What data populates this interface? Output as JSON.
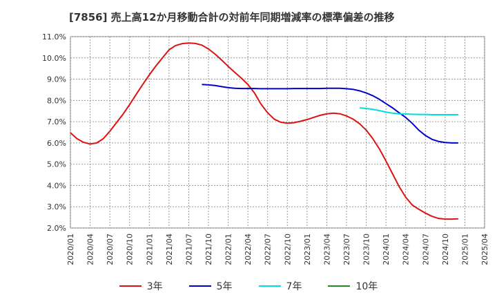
{
  "chart_data": {
    "type": "line",
    "title": "[7856]  売上高12か月移動合計の対前年同期増減率の標準偏差の推移",
    "xlabel": "",
    "ylabel": "",
    "ylim": [
      2.0,
      11.0
    ],
    "yticks": [
      "2.0%",
      "3.0%",
      "4.0%",
      "5.0%",
      "6.0%",
      "7.0%",
      "8.0%",
      "9.0%",
      "10.0%",
      "11.0%"
    ],
    "xtick_labels": [
      "2020/01",
      "2020/04",
      "2020/07",
      "2020/10",
      "2021/01",
      "2021/04",
      "2021/07",
      "2021/10",
      "2022/01",
      "2022/04",
      "2022/07",
      "2022/10",
      "2023/01",
      "2023/04",
      "2023/07",
      "2023/10",
      "2024/01",
      "2024/04",
      "2024/07",
      "2024/10",
      "2025/01",
      "2025/04"
    ],
    "grid": true,
    "legend_position": "bottom",
    "series": [
      {
        "name": "3年",
        "color": "#dd1111",
        "points": [
          [
            "2020/01",
            6.48
          ],
          [
            "2020/02",
            6.2
          ],
          [
            "2020/03",
            6.03
          ],
          [
            "2020/04",
            5.95
          ],
          [
            "2020/05",
            6.0
          ],
          [
            "2020/06",
            6.2
          ],
          [
            "2020/07",
            6.55
          ],
          [
            "2020/08",
            6.95
          ],
          [
            "2020/09",
            7.35
          ],
          [
            "2020/10",
            7.8
          ],
          [
            "2020/11",
            8.28
          ],
          [
            "2020/12",
            8.75
          ],
          [
            "2021/01",
            9.2
          ],
          [
            "2021/02",
            9.62
          ],
          [
            "2021/03",
            10.0
          ],
          [
            "2021/04",
            10.38
          ],
          [
            "2021/05",
            10.58
          ],
          [
            "2021/06",
            10.67
          ],
          [
            "2021/07",
            10.7
          ],
          [
            "2021/08",
            10.68
          ],
          [
            "2021/09",
            10.6
          ],
          [
            "2021/10",
            10.42
          ],
          [
            "2021/11",
            10.18
          ],
          [
            "2021/12",
            9.9
          ],
          [
            "2022/01",
            9.6
          ],
          [
            "2022/02",
            9.32
          ],
          [
            "2022/03",
            9.05
          ],
          [
            "2022/04",
            8.75
          ],
          [
            "2022/05",
            8.35
          ],
          [
            "2022/06",
            7.82
          ],
          [
            "2022/07",
            7.42
          ],
          [
            "2022/08",
            7.12
          ],
          [
            "2022/09",
            6.97
          ],
          [
            "2022/10",
            6.93
          ],
          [
            "2022/11",
            6.95
          ],
          [
            "2022/12",
            7.02
          ],
          [
            "2023/01",
            7.1
          ],
          [
            "2023/02",
            7.2
          ],
          [
            "2023/03",
            7.3
          ],
          [
            "2023/04",
            7.37
          ],
          [
            "2023/05",
            7.4
          ],
          [
            "2023/06",
            7.37
          ],
          [
            "2023/07",
            7.27
          ],
          [
            "2023/08",
            7.12
          ],
          [
            "2023/09",
            6.9
          ],
          [
            "2023/10",
            6.6
          ],
          [
            "2023/11",
            6.2
          ],
          [
            "2023/12",
            5.72
          ],
          [
            "2024/01",
            5.15
          ],
          [
            "2024/02",
            4.55
          ],
          [
            "2024/03",
            3.95
          ],
          [
            "2024/04",
            3.45
          ],
          [
            "2024/05",
            3.08
          ],
          [
            "2024/06",
            2.88
          ],
          [
            "2024/07",
            2.7
          ],
          [
            "2024/08",
            2.55
          ],
          [
            "2024/09",
            2.45
          ],
          [
            "2024/10",
            2.42
          ],
          [
            "2024/11",
            2.42
          ],
          [
            "2024/12",
            2.43
          ]
        ]
      },
      {
        "name": "5年",
        "color": "#0000cc",
        "points": [
          [
            "2021/09",
            8.75
          ],
          [
            "2021/10",
            8.73
          ],
          [
            "2021/11",
            8.7
          ],
          [
            "2021/12",
            8.65
          ],
          [
            "2022/01",
            8.6
          ],
          [
            "2022/02",
            8.57
          ],
          [
            "2022/03",
            8.56
          ],
          [
            "2022/04",
            8.56
          ],
          [
            "2022/05",
            8.56
          ],
          [
            "2022/06",
            8.55
          ],
          [
            "2022/07",
            8.55
          ],
          [
            "2022/08",
            8.55
          ],
          [
            "2022/09",
            8.55
          ],
          [
            "2022/10",
            8.55
          ],
          [
            "2022/11",
            8.56
          ],
          [
            "2022/12",
            8.56
          ],
          [
            "2023/01",
            8.56
          ],
          [
            "2023/02",
            8.56
          ],
          [
            "2023/03",
            8.56
          ],
          [
            "2023/04",
            8.57
          ],
          [
            "2023/05",
            8.57
          ],
          [
            "2023/06",
            8.57
          ],
          [
            "2023/07",
            8.55
          ],
          [
            "2023/08",
            8.52
          ],
          [
            "2023/09",
            8.45
          ],
          [
            "2023/10",
            8.35
          ],
          [
            "2023/11",
            8.22
          ],
          [
            "2023/12",
            8.05
          ],
          [
            "2024/01",
            7.85
          ],
          [
            "2024/02",
            7.65
          ],
          [
            "2024/03",
            7.42
          ],
          [
            "2024/04",
            7.2
          ],
          [
            "2024/05",
            6.92
          ],
          [
            "2024/06",
            6.6
          ],
          [
            "2024/07",
            6.35
          ],
          [
            "2024/08",
            6.17
          ],
          [
            "2024/09",
            6.07
          ],
          [
            "2024/10",
            6.02
          ],
          [
            "2024/11",
            6.0
          ],
          [
            "2024/12",
            6.0
          ]
        ]
      },
      {
        "name": "7年",
        "color": "#00dddd",
        "points": [
          [
            "2023/09",
            7.65
          ],
          [
            "2023/10",
            7.62
          ],
          [
            "2023/11",
            7.58
          ],
          [
            "2023/12",
            7.52
          ],
          [
            "2024/01",
            7.45
          ],
          [
            "2024/02",
            7.4
          ],
          [
            "2024/03",
            7.37
          ],
          [
            "2024/04",
            7.36
          ],
          [
            "2024/05",
            7.35
          ],
          [
            "2024/06",
            7.34
          ],
          [
            "2024/07",
            7.34
          ],
          [
            "2024/08",
            7.33
          ],
          [
            "2024/09",
            7.33
          ],
          [
            "2024/10",
            7.33
          ],
          [
            "2024/11",
            7.33
          ],
          [
            "2024/12",
            7.33
          ]
        ]
      },
      {
        "name": "10年",
        "color": "#228822",
        "points": []
      }
    ]
  }
}
